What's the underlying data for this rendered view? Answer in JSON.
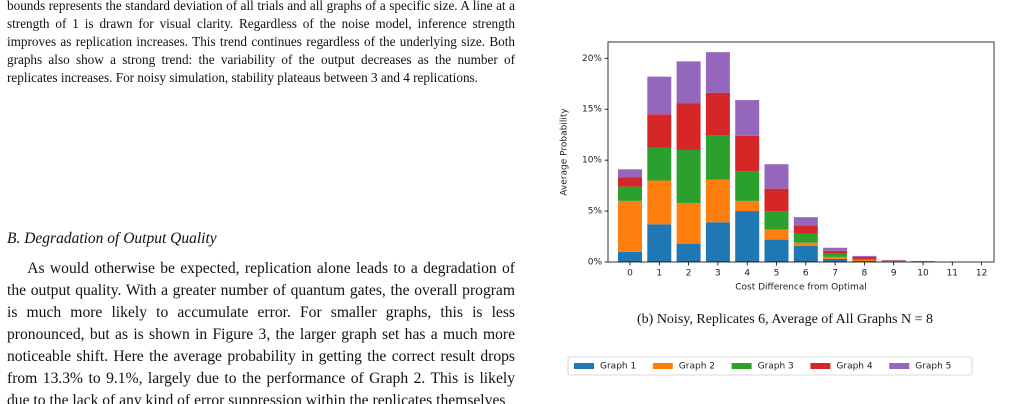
{
  "paragraphs": [
    "bounds represents the standard deviation of all trials and all graphs of a specific size. A line at a strength of 1 is drawn for visual clarity. Regardless of the noise model, inference strength improves as replication increases. This trend continues regardless of the underlying size. Both graphs also show a strong trend: the variability of the output decreases as the number of replicates increases. For noisy simulation, stability plateaus between 3 and 4 replications.",
    "As would otherwise be expected, replication alone leads to a degradation of the output quality. With a greater number of quantum gates, the overall program is much more likely to accumulate error. For smaller graphs, this is less pronounced, but as is shown in Figure 3, the larger graph set has a much more noticeable shift. Here the average probability in getting the correct result drops from 13.3% to 9.1%, largely due to the performance of Graph 2. This is likely due to the lack of any kind of error suppression within the replicates themselves"
  ],
  "section_heading": "B. Degradation of Output Quality",
  "caption": "(b) Noisy, Replicates 6, Average of All Graphs N = 8",
  "chart_data": {
    "type": "stacked_bar",
    "x_label": "Cost Difference from Optimal",
    "y_label": "Average Probability",
    "categories": [
      "0",
      "1",
      "2",
      "3",
      "4",
      "5",
      "6",
      "7",
      "8",
      "9",
      "10",
      "11",
      "12"
    ],
    "series": [
      {
        "name": "Graph 1",
        "color": "#1f77b4",
        "values": [
          1.0,
          3.7,
          1.8,
          3.9,
          5.0,
          2.2,
          1.6,
          0.3,
          0.1,
          0.04,
          0.02,
          0,
          0
        ]
      },
      {
        "name": "Graph 2",
        "color": "#ff7f0e",
        "values": [
          5.0,
          4.3,
          4.0,
          4.2,
          1.0,
          1.0,
          0.3,
          0.2,
          0.1,
          0.04,
          0.02,
          0,
          0
        ]
      },
      {
        "name": "Graph 3",
        "color": "#2ca02c",
        "values": [
          1.4,
          3.2,
          5.2,
          4.3,
          2.9,
          1.8,
          0.9,
          0.3,
          0.1,
          0.04,
          0.02,
          0,
          0
        ]
      },
      {
        "name": "Graph 4",
        "color": "#d62728",
        "values": [
          0.9,
          3.3,
          4.6,
          4.2,
          3.5,
          2.2,
          0.8,
          0.3,
          0.2,
          0.04,
          0.02,
          0,
          0
        ]
      },
      {
        "name": "Graph 5",
        "color": "#9467bd",
        "values": [
          0.8,
          3.7,
          4.1,
          4.0,
          3.5,
          2.4,
          0.8,
          0.3,
          0.1,
          0.04,
          0.02,
          0,
          0
        ]
      }
    ],
    "ylim": [
      0,
      21.6
    ],
    "yticks": [
      {
        "value": 0,
        "label": "0%"
      },
      {
        "value": 5,
        "label": "5%"
      },
      {
        "value": 10,
        "label": "10%"
      },
      {
        "value": 15,
        "label": "15%"
      },
      {
        "value": 20,
        "label": "20%"
      }
    ],
    "legend": "below"
  }
}
